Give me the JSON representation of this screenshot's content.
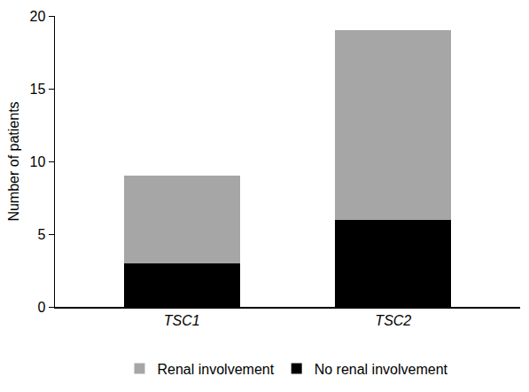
{
  "chart_data": {
    "type": "bar",
    "stacked": true,
    "categories": [
      "TSC1",
      "TSC2"
    ],
    "series": [
      {
        "name": "No renal involvement",
        "color": "#000000",
        "values": [
          3,
          6
        ]
      },
      {
        "name": "Renal involvement",
        "color": "#a6a6a6",
        "values": [
          6,
          13
        ]
      }
    ],
    "y_label": "Number of patients",
    "ylim": [
      0,
      20
    ],
    "yticks": [
      0,
      5,
      10,
      15,
      20
    ],
    "grid": false,
    "legend": "bottom"
  }
}
